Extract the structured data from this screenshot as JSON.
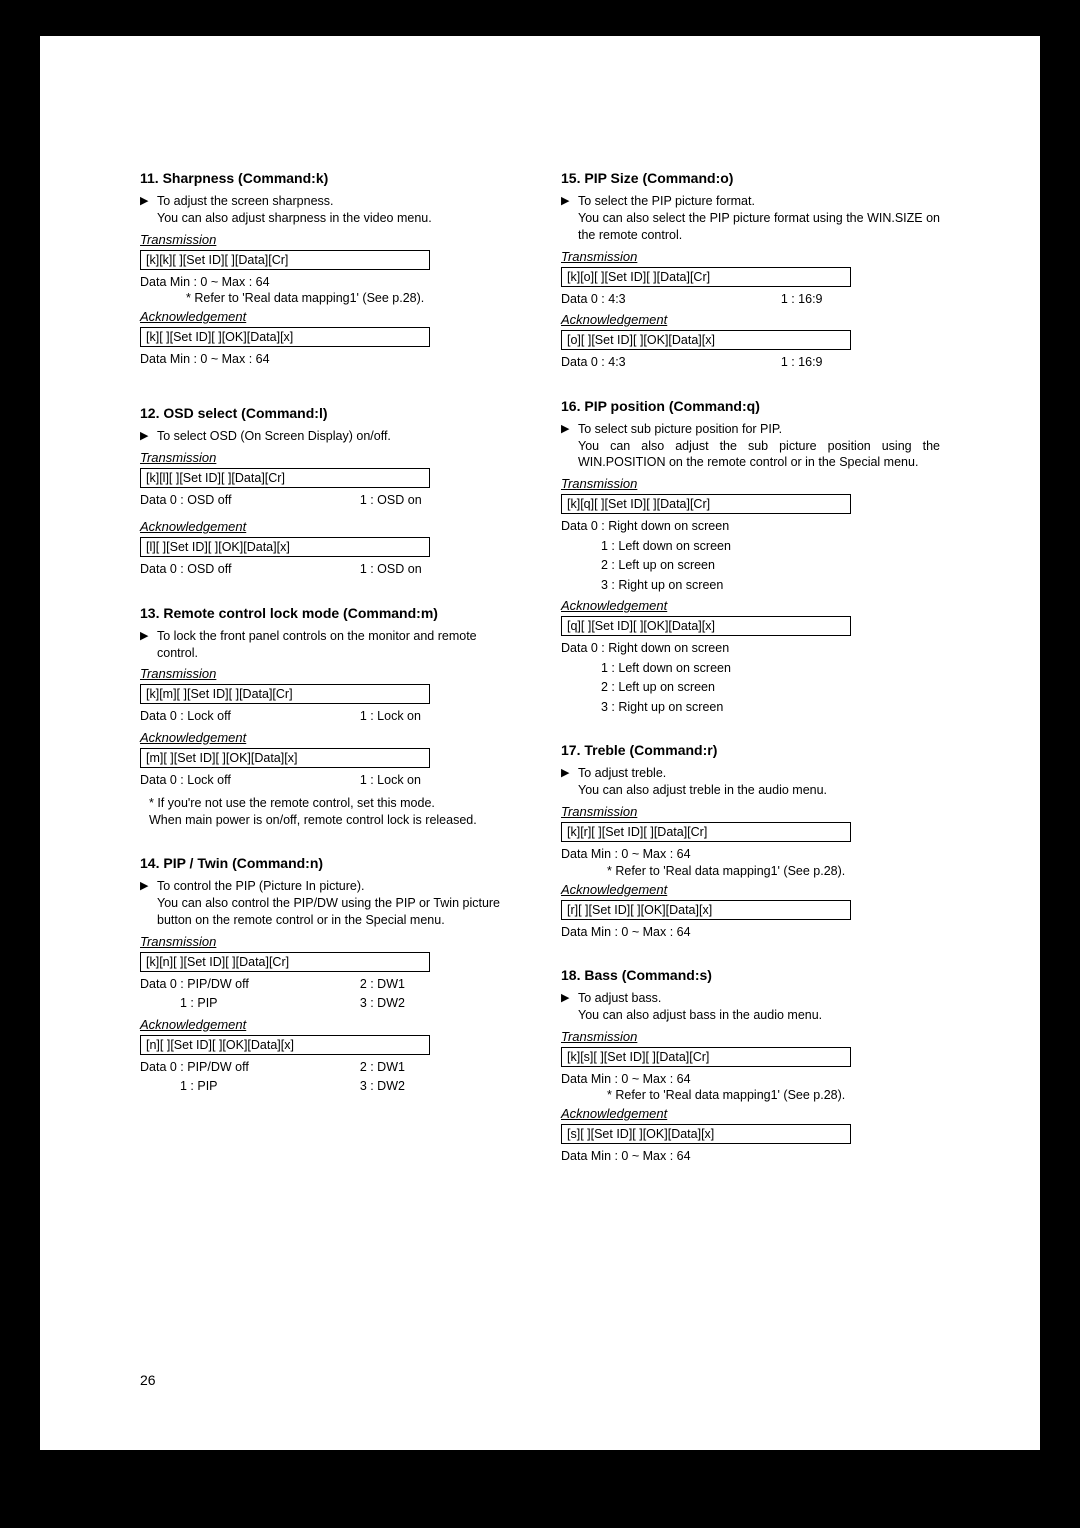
{
  "pageNumber": "26",
  "left": {
    "s11": {
      "title": "11. Sharpness (Command:k)",
      "desc": "To adjust the screen sharpness.<br>You can also adjust sharpness in the video menu.",
      "trans_label": "Transmission",
      "trans_cmd": "[k][k][  ][Set ID][  ][Data][Cr]",
      "trans_data": "Data   Min : 0 ~ Max : 64",
      "trans_refer": "* Refer to 'Real data mapping1' (See p.28).",
      "ack_label": "Acknowledgement",
      "ack_cmd": "[k][  ][Set ID][  ][OK][Data][x]",
      "ack_data": "Data   Min : 0 ~ Max : 64"
    },
    "s12": {
      "title": "12. OSD select (Command:l)",
      "desc": "To select OSD (On Screen Display) on/off.",
      "trans_label": "Transmission",
      "trans_cmd": "[k][l][  ][Set ID][  ][Data][Cr]",
      "trans_data_l": "Data 0  : OSD off",
      "trans_data_r": "1 : OSD on",
      "ack_label": "Acknowledgement",
      "ack_cmd": "[l][  ][Set ID][  ][OK][Data][x]",
      "ack_data_l": "Data 0  : OSD off",
      "ack_data_r": "1 : OSD on"
    },
    "s13": {
      "title": "13. Remote control lock mode (Command:m)",
      "desc": "To lock the front panel controls on the monitor and remote control.",
      "trans_label": "Transmission",
      "trans_cmd": "[k][m][  ][Set ID][  ][Data][Cr]",
      "trans_data_l": "Data   0  : Lock off",
      "trans_data_r": "1 : Lock on",
      "ack_label": "Acknowledgement",
      "ack_cmd": "[m][  ][Set ID][  ][OK][Data][x]",
      "ack_data_l": "Data   0  : Lock off",
      "ack_data_r": "1 : Lock on",
      "note": "* If you're not use the remote control, set this mode.<br>When main power is on/off, remote control lock is released."
    },
    "s14": {
      "title": "14. PIP / Twin (Command:n)",
      "desc": "To control the PIP (Picture In picture).<br>You can also control the PIP/DW using the PIP or Twin picture button on the remote control or in the Special menu.",
      "trans_label": "Transmission",
      "trans_cmd": "[k][n][  ][Set ID][  ][Data][Cr]",
      "trans_data_l1": "Data   0  : PIP/DW off",
      "trans_data_r1": "2 : DW1",
      "trans_data_l2": "1  : PIP",
      "trans_data_r2": "3 : DW2",
      "ack_label": "Acknowledgement",
      "ack_cmd": "[n][  ][Set ID][  ][OK][Data][x]",
      "ack_data_l1": "Data   0  : PIP/DW off",
      "ack_data_r1": "2 : DW1",
      "ack_data_l2": "1  : PIP",
      "ack_data_r2": "3 : DW2"
    }
  },
  "right": {
    "s15": {
      "title": "15. PIP Size (Command:o)",
      "desc": "To select the PIP picture format.<br>You can also select the PIP picture format using the WIN.SIZE on the remote control.",
      "trans_label": "Transmission",
      "trans_cmd": "[k][o][  ][Set ID][  ][Data][Cr]",
      "trans_data_l": "Data  0  :    4:3",
      "trans_data_r": "1 :  16:9",
      "ack_label": "Acknowledgement",
      "ack_cmd": "[o][  ][Set ID][  ][OK][Data][x]",
      "ack_data_l": "Data  0  :    4:3",
      "ack_data_r": "1 :  16:9"
    },
    "s16": {
      "title": "16. PIP position (Command:q)",
      "desc": "To select sub picture position for PIP.<br>You can also adjust the sub picture position using the WIN.POSITION on the remote control or in the Special menu.",
      "trans_label": "Transmission",
      "trans_cmd": "[k][q][  ][Set ID][  ][Data][Cr]",
      "trans_data0": "Data   0  : Right down on screen",
      "trans_data1": "1  : Left down on screen",
      "trans_data2": "2  : Left up on screen",
      "trans_data3": "3  : Right up on screen",
      "ack_label": "Acknowledgement",
      "ack_cmd": "[q][  ][Set ID][  ][OK][Data][x]",
      "ack_data0": "Data   0  : Right down on screen",
      "ack_data1": "1  : Left down on screen",
      "ack_data2": "2  : Left up on screen",
      "ack_data3": "3  : Right up on screen"
    },
    "s17": {
      "title": "17. Treble (Command:r)",
      "desc": "To adjust treble.<br>You can also adjust treble in the audio menu.",
      "trans_label": "Transmission",
      "trans_cmd": "[k][r][  ][Set ID][  ][Data][Cr]",
      "trans_data": "Data   Min : 0 ~ Max : 64",
      "trans_refer": "* Refer to 'Real data mapping1' (See p.28).",
      "ack_label": "Acknowledgement",
      "ack_cmd": "[r][  ][Set ID][  ][OK][Data][x]",
      "ack_data": "Data   Min : 0 ~ Max : 64"
    },
    "s18": {
      "title": "18. Bass (Command:s)",
      "desc": "To adjust bass.<br>You can also adjust bass in the audio menu.",
      "trans_label": "Transmission",
      "trans_cmd": "[k][s][  ][Set ID][  ][Data][Cr]",
      "trans_data": "Data   Min : 0 ~ Max : 64",
      "trans_refer": "* Refer to 'Real data mapping1' (See p.28).",
      "ack_label": "Acknowledgement",
      "ack_cmd": "[s][  ][Set ID][  ][OK][Data][x]",
      "ack_data": "Data   Min : 0 ~ Max : 64"
    }
  }
}
